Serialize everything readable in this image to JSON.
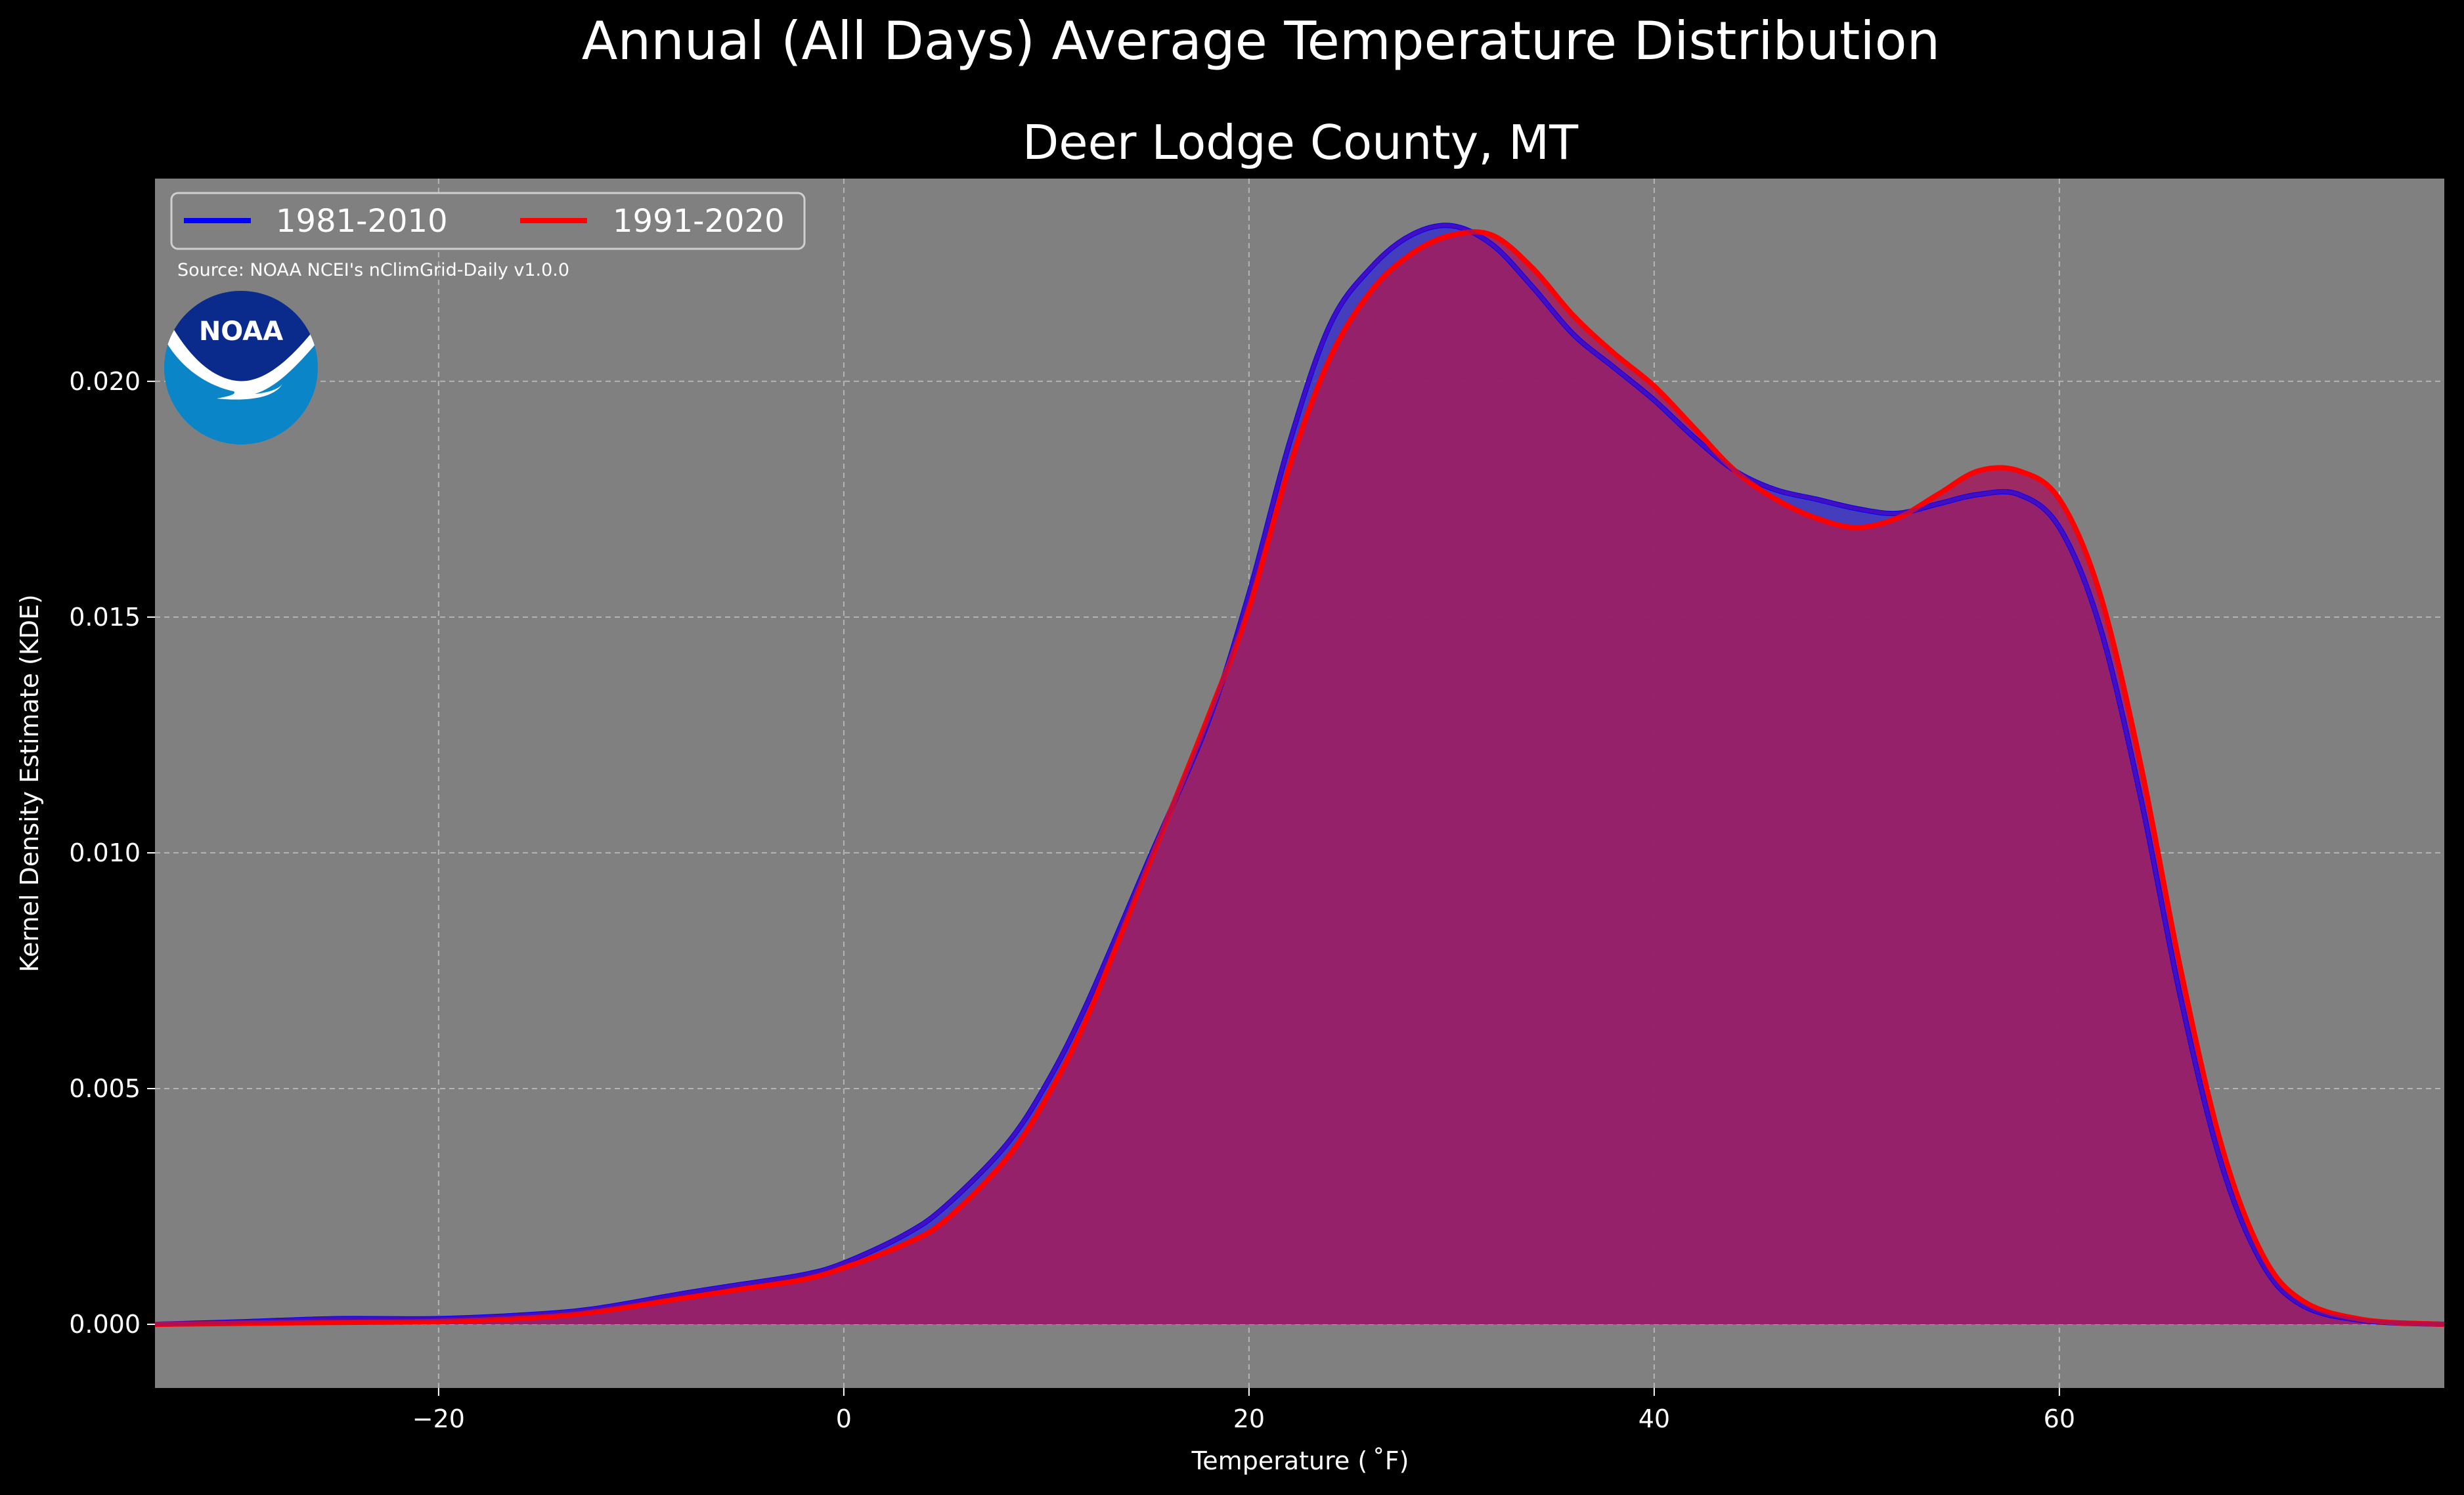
{
  "chart_data": {
    "type": "area",
    "suptitle": "Annual (All Days) Average Temperature Distribution",
    "title": "Deer Lodge County, MT",
    "xlabel": "Temperature ($^\\circ$F)",
    "xlabel_display": "Temperature ( ˚F)",
    "ylabel": "Kernel Density Estimate (KDE)",
    "xlim": [
      -34,
      79
    ],
    "ylim": [
      -0.00135,
      0.0243
    ],
    "x_ticks": [
      -20,
      0,
      20,
      40,
      60
    ],
    "x_tick_labels": [
      "−20",
      "0",
      "20",
      "40",
      "60"
    ],
    "y_ticks": [
      0.0,
      0.005,
      0.01,
      0.015,
      0.02
    ],
    "y_tick_labels": [
      "0.000",
      "0.005",
      "0.010",
      "0.015",
      "0.020"
    ],
    "grid": true,
    "legend_position": "top-left",
    "source": "Source: NOAA NCEI's nClimGrid-Daily v1.0.0",
    "logo_text": "NOAA",
    "colors": {
      "background": "#000000",
      "plot_background": "#808080",
      "series_1": "#0000ff",
      "series_2": "#ff0000",
      "fill_1": "#3a32c8",
      "fill_2": "#a01e5f",
      "noaa_dark_blue": "#0b2b8c",
      "noaa_light_blue": "#0a85c8"
    },
    "series": [
      {
        "name": "1981-2010",
        "x": [
          -34,
          -30,
          -25,
          -20,
          -15,
          -12,
          -8,
          -5,
          -2,
          0,
          3,
          5,
          8,
          10,
          12,
          15,
          18,
          20,
          22,
          24,
          26,
          28,
          30,
          32,
          34,
          36,
          38,
          40,
          42,
          44,
          46,
          48,
          50,
          52,
          54,
          56,
          58,
          60,
          62,
          64,
          66,
          68,
          70,
          72,
          75,
          79
        ],
        "y": [
          0.0,
          5e-05,
          0.00012,
          0.00012,
          0.00022,
          0.00035,
          0.00065,
          0.00085,
          0.00105,
          0.0013,
          0.0019,
          0.0025,
          0.0038,
          0.0051,
          0.0068,
          0.0098,
          0.0128,
          0.0155,
          0.0187,
          0.0212,
          0.0224,
          0.0231,
          0.0233,
          0.0229,
          0.022,
          0.021,
          0.0203,
          0.0196,
          0.0188,
          0.0181,
          0.0177,
          0.0175,
          0.0173,
          0.0172,
          0.0174,
          0.0176,
          0.0176,
          0.0169,
          0.0148,
          0.0112,
          0.0069,
          0.0034,
          0.0013,
          0.0004,
          8e-05,
          0.0
        ]
      },
      {
        "name": "1991-2020",
        "x": [
          -34,
          -30,
          -25,
          -20,
          -15,
          -12,
          -8,
          -5,
          -2,
          0,
          3,
          5,
          8,
          10,
          12,
          15,
          18,
          20,
          22,
          24,
          26,
          28,
          30,
          32,
          34,
          36,
          38,
          40,
          42,
          44,
          46,
          48,
          50,
          52,
          54,
          56,
          58,
          60,
          62,
          64,
          66,
          68,
          70,
          72,
          75,
          79
        ],
        "y": [
          0.0,
          2e-05,
          4e-05,
          6e-05,
          0.00015,
          0.00028,
          0.00055,
          0.00075,
          0.00095,
          0.0012,
          0.0017,
          0.0022,
          0.0035,
          0.0048,
          0.0065,
          0.0097,
          0.0129,
          0.0152,
          0.0182,
          0.0205,
          0.0219,
          0.0227,
          0.0231,
          0.0231,
          0.0224,
          0.0214,
          0.0206,
          0.0199,
          0.019,
          0.0181,
          0.0175,
          0.0171,
          0.0169,
          0.0171,
          0.0176,
          0.0181,
          0.0181,
          0.0175,
          0.0155,
          0.0119,
          0.0075,
          0.0038,
          0.0015,
          0.0005,
          0.0001,
          0.0
        ]
      }
    ]
  }
}
